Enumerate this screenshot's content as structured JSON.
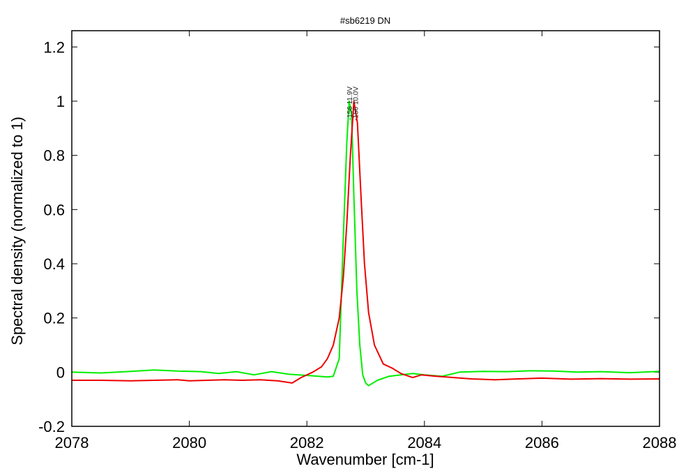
{
  "chart_data": {
    "type": "line",
    "title": "#sb6219 DN",
    "xlabel": "Wavenumber [cm-1]",
    "ylabel": "Spectral density (normalized to 1)",
    "xlim": [
      2078,
      2088
    ],
    "ylim": [
      -0.2,
      1.26
    ],
    "xticks": [
      2078,
      2080,
      2082,
      2084,
      2086,
      2088
    ],
    "xtick_labels": [
      "2078",
      "2080",
      "2082",
      "2084",
      "2086",
      "2088"
    ],
    "yticks": [
      -0.2,
      0,
      0.2,
      0.4,
      0.6,
      0.8,
      1,
      1.2
    ],
    "ytick_labels": [
      "-0.2",
      "0",
      "0.2",
      "0.4",
      "0.6",
      "0.8",
      "1",
      "1.2"
    ],
    "grid": false,
    "peak_labels": [
      {
        "x": 2082.72,
        "text": "-156 11.9V"
      },
      {
        "x": 2082.82,
        "text": "-156 10.0V"
      }
    ],
    "series": [
      {
        "color": "#00ee00",
        "x": [
          2078.0,
          2078.5,
          2079.0,
          2079.4,
          2079.8,
          2080.2,
          2080.5,
          2080.8,
          2081.1,
          2081.4,
          2081.7,
          2082.0,
          2082.2,
          2082.35,
          2082.45,
          2082.55,
          2082.62,
          2082.68,
          2082.72,
          2082.76,
          2082.8,
          2082.85,
          2082.9,
          2082.95,
          2083.0,
          2083.05,
          2083.2,
          2083.4,
          2083.6,
          2083.8,
          2084.0,
          2084.3,
          2084.6,
          2085.0,
          2085.4,
          2085.8,
          2086.2,
          2086.6,
          2087.0,
          2087.5,
          2088.0
        ],
        "y": [
          0.0,
          -0.003,
          0.003,
          0.008,
          0.004,
          0.002,
          -0.005,
          0.002,
          -0.01,
          0.002,
          -0.008,
          -0.012,
          -0.015,
          -0.018,
          -0.015,
          0.05,
          0.5,
          0.85,
          1.0,
          0.95,
          0.65,
          0.3,
          0.1,
          -0.01,
          -0.04,
          -0.05,
          -0.03,
          -0.015,
          -0.01,
          -0.005,
          -0.01,
          -0.015,
          0.0,
          0.003,
          0.002,
          0.005,
          0.004,
          0.0,
          0.002,
          -0.002,
          0.003
        ]
      },
      {
        "color": "#ee0000",
        "x": [
          2078.0,
          2078.5,
          2079.0,
          2079.4,
          2079.8,
          2080.0,
          2080.3,
          2080.6,
          2080.9,
          2081.2,
          2081.5,
          2081.75,
          2081.9,
          2082.1,
          2082.25,
          2082.35,
          2082.45,
          2082.55,
          2082.62,
          2082.68,
          2082.74,
          2082.8,
          2082.86,
          2082.92,
          2082.98,
          2083.05,
          2083.15,
          2083.3,
          2083.45,
          2083.6,
          2083.8,
          2083.95,
          2084.2,
          2084.5,
          2084.8,
          2085.2,
          2085.6,
          2086.0,
          2086.5,
          2087.0,
          2087.5,
          2088.0
        ],
        "y": [
          -0.03,
          -0.03,
          -0.032,
          -0.03,
          -0.028,
          -0.032,
          -0.03,
          -0.028,
          -0.03,
          -0.028,
          -0.032,
          -0.04,
          -0.02,
          0.0,
          0.02,
          0.05,
          0.1,
          0.2,
          0.35,
          0.55,
          0.8,
          1.0,
          0.92,
          0.65,
          0.4,
          0.22,
          0.1,
          0.03,
          0.015,
          -0.005,
          -0.02,
          -0.01,
          -0.015,
          -0.02,
          -0.025,
          -0.028,
          -0.025,
          -0.022,
          -0.026,
          -0.024,
          -0.026,
          -0.025
        ]
      }
    ]
  }
}
